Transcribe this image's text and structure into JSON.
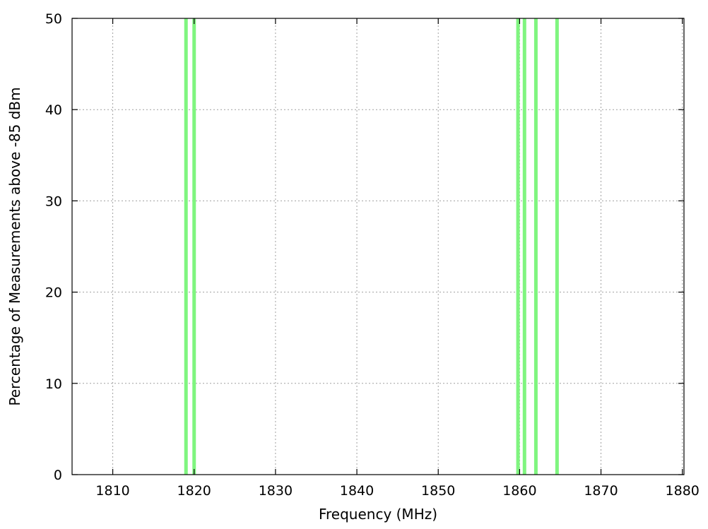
{
  "chart_data": {
    "type": "bar",
    "title": "",
    "xlabel": "Frequency (MHz)",
    "ylabel": "Percentage of Measurements above -85 dBm",
    "xlim": [
      1805,
      1880.2
    ],
    "ylim": [
      0,
      50
    ],
    "xticks": [
      1810,
      1820,
      1830,
      1840,
      1850,
      1860,
      1870,
      1880
    ],
    "yticks": [
      0,
      10,
      20,
      30,
      40,
      50
    ],
    "grid": true,
    "bar_color": "#7ff57f",
    "bars": [
      {
        "x": 1819.0,
        "value": 50
      },
      {
        "x": 1820.0,
        "value": 50
      },
      {
        "x": 1859.8,
        "value": 50
      },
      {
        "x": 1860.6,
        "value": 50
      },
      {
        "x": 1862.0,
        "value": 50
      },
      {
        "x": 1864.6,
        "value": 50
      }
    ]
  }
}
